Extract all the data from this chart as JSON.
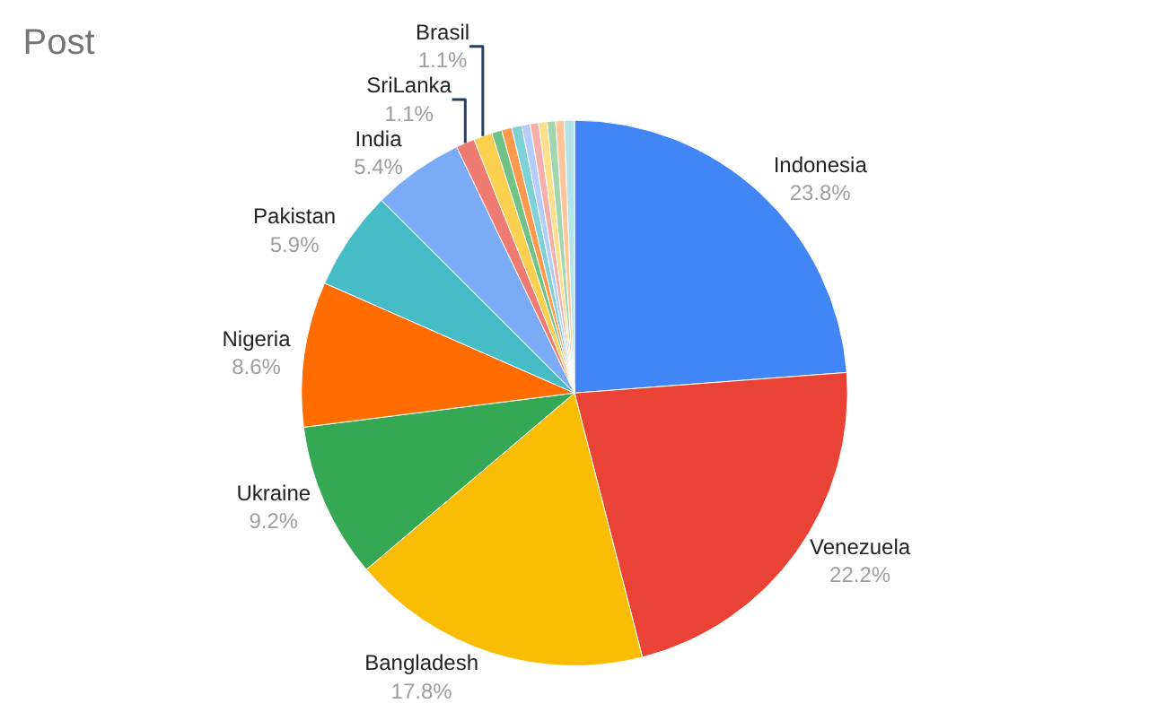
{
  "chart_data": {
    "type": "pie",
    "title": "Post",
    "legend": false,
    "categories": [
      "Indonesia",
      "Venezuela",
      "Bangladesh",
      "Ukraine",
      "Nigeria",
      "Pakistan",
      "India",
      "SriLanka",
      "Brasil",
      null,
      null,
      null,
      null,
      null,
      null,
      null,
      null,
      null
    ],
    "values": [
      23.8,
      22.2,
      17.8,
      9.2,
      8.6,
      5.9,
      5.4,
      1.1,
      1.1,
      0.6,
      0.6,
      0.6,
      0.5,
      0.5,
      0.5,
      0.5,
      0.5,
      0.6
    ],
    "value_labels": [
      "23.8%",
      "22.2%",
      "17.8%",
      "9.2%",
      "8.6%",
      "5.9%",
      "5.4%",
      "1.1%",
      "1.1%",
      null,
      null,
      null,
      null,
      null,
      null,
      null,
      null,
      null
    ],
    "colors": [
      "#4285f4",
      "#ea4335",
      "#fbbc04",
      "#34a853",
      "#ff6d01",
      "#46bdc6",
      "#7baaf7",
      "#f07b72",
      "#fcd04f",
      "#71c287",
      "#ff994d",
      "#7ed1d7",
      "#b3cefb",
      "#f6aea9",
      "#fde08b",
      "#a1d6b0",
      "#ffc599",
      "#b5e4e8"
    ]
  }
}
